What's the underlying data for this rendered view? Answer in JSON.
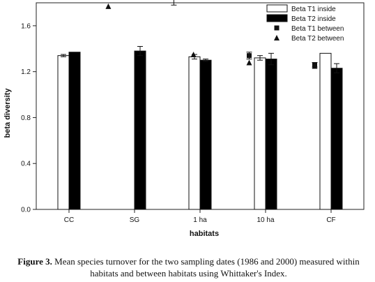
{
  "chart_data": {
    "type": "bar",
    "xlabel": "habitats",
    "ylabel": "beta diversity",
    "ylim": [
      0,
      1.8
    ],
    "yticks": [
      "0.0",
      "0.4",
      "0.8",
      "1.2",
      "1.6"
    ],
    "ytick_values": [
      0,
      0.4,
      0.8,
      1.2,
      1.6
    ],
    "categories": [
      "CC",
      "SG",
      "1 ha",
      "10 ha",
      "CF"
    ],
    "legend_position": "top-right",
    "grid": false,
    "series": [
      {
        "name": "Beta T1 inside",
        "kind": "bar",
        "fill": "#ffffff",
        "values": [
          1.34,
          0.0,
          1.33,
          1.32,
          1.36
        ],
        "errors": [
          0.01,
          0.0,
          0.02,
          0.02,
          0.0
        ]
      },
      {
        "name": "Beta T2 inside",
        "kind": "bar",
        "fill": "#000000",
        "values": [
          1.37,
          1.38,
          1.3,
          1.31,
          1.23
        ],
        "errors": [
          0.0,
          0.04,
          0.01,
          0.05,
          0.04
        ]
      },
      {
        "name": "Beta T1 between",
        "kind": "square",
        "points": [
          {
            "x": 1.6,
            "y": 1.85,
            "err": 0.07
          },
          {
            "x": 2.75,
            "y": 1.34,
            "err": 0.03
          },
          {
            "x": 3.75,
            "y": 1.26,
            "err": 0.02
          }
        ]
      },
      {
        "name": "Beta T2 between",
        "kind": "triangle",
        "points": [
          {
            "x": 0.6,
            "y": 1.77
          },
          {
            "x": 1.9,
            "y": 1.35
          },
          {
            "x": 2.75,
            "y": 1.28
          },
          {
            "x": 3.75,
            "y": 1.25
          }
        ]
      }
    ]
  },
  "caption": {
    "label": "Figure 3.",
    "text": "Mean species turnover for the two sampling dates (1986 and 2000) measured within habitats and between habitats using Whittaker's Index."
  }
}
